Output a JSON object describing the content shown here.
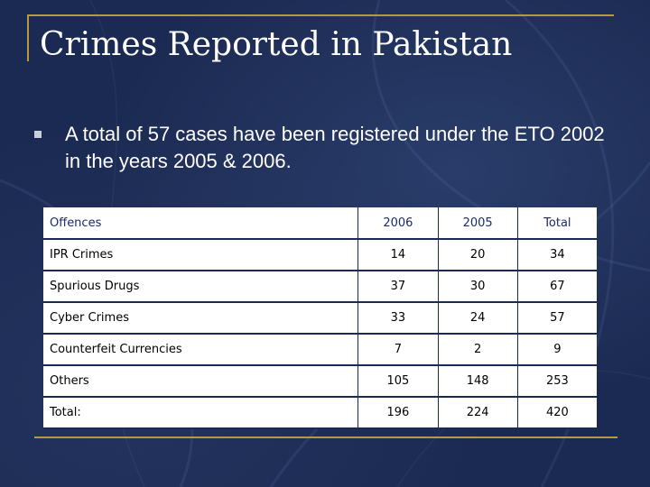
{
  "slide": {
    "title": "Crimes Reported in Pakistan",
    "bullet_text": "A total of 57 cases have been registered under the ETO 2002 in the years 2005 & 2006."
  },
  "table": {
    "headers": [
      "Offences",
      "2006",
      "2005",
      "Total"
    ],
    "rows": [
      [
        "IPR Crimes",
        "14",
        "20",
        "34"
      ],
      [
        "Spurious Drugs",
        "37",
        "30",
        "67"
      ],
      [
        "Cyber Crimes",
        "33",
        "24",
        "57"
      ],
      [
        "Counterfeit Currencies",
        "7",
        "2",
        "9"
      ],
      [
        "Others",
        "105",
        "148",
        "253"
      ],
      [
        "Total:",
        "196",
        "224",
        "420"
      ]
    ]
  },
  "colors": {
    "background": "#1b2a52",
    "accent_line": "#b89a3e",
    "header_text": "#1a2a6c"
  },
  "icons": {
    "bullet": "square-bullet-icon"
  }
}
